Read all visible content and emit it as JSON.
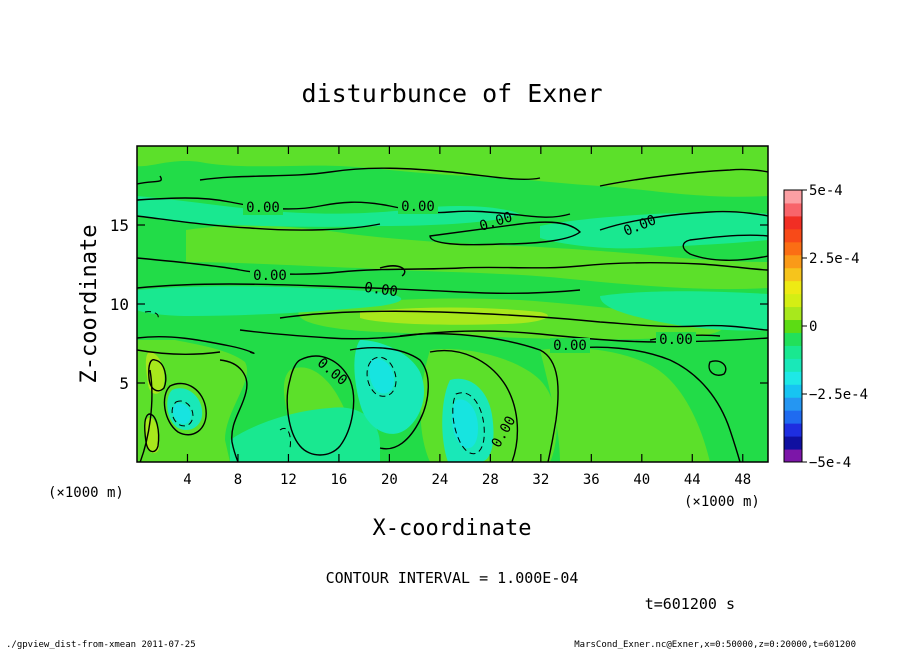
{
  "chart_data": {
    "type": "heatmap",
    "subtype": "filled-contour",
    "title": "disturbunce of Exner",
    "xlabel": "X-coordinate",
    "ylabel": "Z-coordinate",
    "x_unit": "(×1000 m)",
    "y_unit": "(×1000 m)",
    "xlim": [
      0,
      50
    ],
    "ylim": [
      0,
      20
    ],
    "x_ticks": [
      4,
      8,
      12,
      16,
      20,
      24,
      28,
      32,
      36,
      40,
      44,
      48
    ],
    "y_ticks": [
      5,
      10,
      15
    ],
    "contour_interval_text": "CONTOUR INTERVAL = 1.000E-04",
    "time_text": "t=601200 s",
    "contour_labels": [
      "0.00"
    ],
    "colorbar": {
      "min": -0.0005,
      "max": 0.0005,
      "labels": [
        "5e-4",
        "2.5e-4",
        "0",
        "−2.5e-4",
        "−5e-4"
      ],
      "label_values": [
        0.0005,
        0.00025,
        0,
        -0.00025,
        -0.0005
      ],
      "colors": [
        "#7c16a8",
        "#1010a0",
        "#1e2ee0",
        "#1f6bf0",
        "#2596f2",
        "#17c4f2",
        "#1ee8e6",
        "#19e8b8",
        "#19e890",
        "#22e05a",
        "#5cdc14",
        "#a8e81c",
        "#d4ee14",
        "#eeea14",
        "#f6c41c",
        "#fa9a18",
        "#fb6e14",
        "#f84a18",
        "#f12e24",
        "#f8646a",
        "#fc9fa3"
      ]
    },
    "field_colors": {
      "base": "#22dc48",
      "slightly_positive": "#5ce02a",
      "positive": "#a8e81c",
      "slightly_negative": "#19e890",
      "negative": "#19e8b8",
      "more_negative": "#17e4e0"
    }
  },
  "footer": {
    "left": "./gpview_dist-from-xmean  2011-07-25",
    "right": "MarsCond_Exner.nc@Exner,x=0:50000,z=0:20000,t=601200"
  }
}
